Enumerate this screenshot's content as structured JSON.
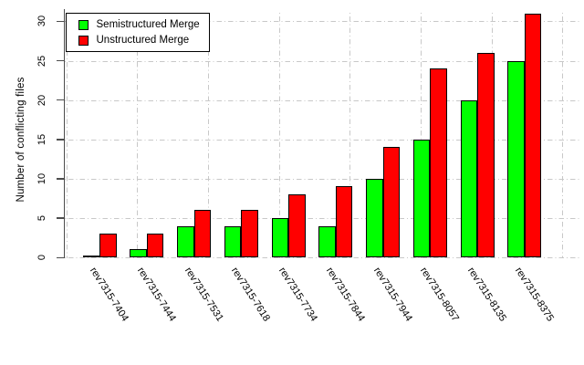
{
  "chart_data": {
    "type": "bar",
    "title": "",
    "xlabel": "",
    "ylabel": "Number of conflicting files",
    "categories": [
      "rev7315-7404",
      "rev7315-7444",
      "rev7315-7531",
      "rev7315-7618",
      "rev7315-7734",
      "rev7315-7844",
      "rev7315-7944",
      "rev7315-8057",
      "rev7315-8135",
      "rev7315-8375"
    ],
    "series": [
      {
        "name": "Semistructured Merge",
        "color": "#00ff00",
        "values": [
          0,
          1,
          4,
          4,
          5,
          4,
          10,
          15,
          20,
          25
        ]
      },
      {
        "name": "Unstructured Merge",
        "color": "#ff0000",
        "values": [
          3,
          3,
          6,
          6,
          8,
          9,
          14,
          24,
          26,
          31
        ]
      }
    ],
    "yticks": [
      0,
      5,
      10,
      15,
      20,
      25,
      30
    ],
    "ylim": [
      0,
      31.5
    ],
    "grid": "dash-dot horizontal and vertical, light gray",
    "legend_position": "top-left",
    "bar_border_color": "#000000",
    "grid_color": "#c8c8c8",
    "axis_color": "#4d4d4d",
    "background": "#ffffff",
    "x_label_rotation_deg": 57
  }
}
